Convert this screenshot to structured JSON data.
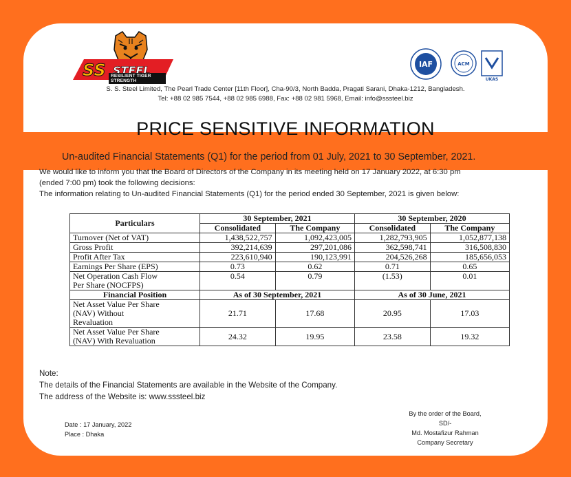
{
  "brand": {
    "logo_text": "SSsteel",
    "tagline": "RESILIENT TIGER STRENGTH",
    "address_line": "S. S. Steel Limited, The Pearl Trade Center [11th Floor], Cha-90/3, North Badda, Pragati Sarani, Dhaka-1212, Bangladesh.",
    "contact_line": "Tel: +88 02 985 7544, +88 02 985 6988, Fax: +88 02 981 5968, Email: info@sssteel.biz",
    "accent_color": "#ff6f1e"
  },
  "certifications": {
    "iaf": "IAF",
    "acm": "ACM",
    "ukas": "UKAS"
  },
  "banner_title": "PRICE SENSITIVE INFORMATION",
  "subtitle": "Un-audited Financial Statements (Q1) for the period from 01 July, 2021 to 30 September, 2021.",
  "intro": {
    "line1": "We would like to inform you that the Board of Directors of the Company in its meeting held on 17 January 2022, at 6:30 pm",
    "line2": "(ended 7:00 pm) took the following decisions:",
    "line3": "The information relating to Un-audited Financial Statements (Q1) for the period ended 30 September, 2021 is given below:"
  },
  "table": {
    "particulars_header": "Particulars",
    "period1": "30 September, 2021",
    "period2": "30 September, 2020",
    "col_consolidated": "Consolidated",
    "col_company": "The Company",
    "rows": [
      {
        "label": "Turnover (Net of VAT)",
        "v": [
          "1,438,522,757",
          "1,092,423,005",
          "1,282,793,905",
          "1,052,877,138"
        ]
      },
      {
        "label": "Gross Profit",
        "v": [
          "392,214,639",
          "297,201,086",
          "362,598,741",
          "316,508,830"
        ]
      },
      {
        "label": "Profit After Tax",
        "v": [
          "223,610,940",
          "190,123,991",
          "204,526,268",
          "185,656,053"
        ]
      },
      {
        "label": "Earnings Per Share (EPS)",
        "v": [
          "0.73",
          "0.62",
          "0.71",
          "0.65"
        ]
      },
      {
        "label": "Net Operation Cash Flow",
        "label2": "Per Share (NOCFPS)",
        "v": [
          "0.54",
          "0.79",
          "(1.53)",
          "0.01"
        ]
      }
    ],
    "fin_position_header": "Financial Position",
    "fin_period1": "As of 30 September, 2021",
    "fin_period2": "As of 30 June, 2021",
    "nav_rows": [
      {
        "l1": "Net Asset Value Per Share",
        "l2": "(NAV) Without",
        "l3": "Revaluation",
        "v": [
          "21.71",
          "17.68",
          "20.95",
          "17.03"
        ]
      },
      {
        "l1": "Net Asset Value Per Share",
        "l2": "(NAV) With Revaluation",
        "v": [
          "24.32",
          "19.95",
          "23.58",
          "19.32"
        ]
      }
    ]
  },
  "note": {
    "heading": "Note:",
    "line1": "The details of the Financial Statements are available in the Website of the Company.",
    "line2": "The address of the Website is: www.sssteel.biz"
  },
  "footer": {
    "date": "Date    : 17 January, 2022",
    "place": "Place   : Dhaka",
    "sig1": "By the order of the Board,",
    "sig2": "SD/-",
    "sig3": "Md. Mostafizur Rahman",
    "sig4": "Company Secretary"
  }
}
